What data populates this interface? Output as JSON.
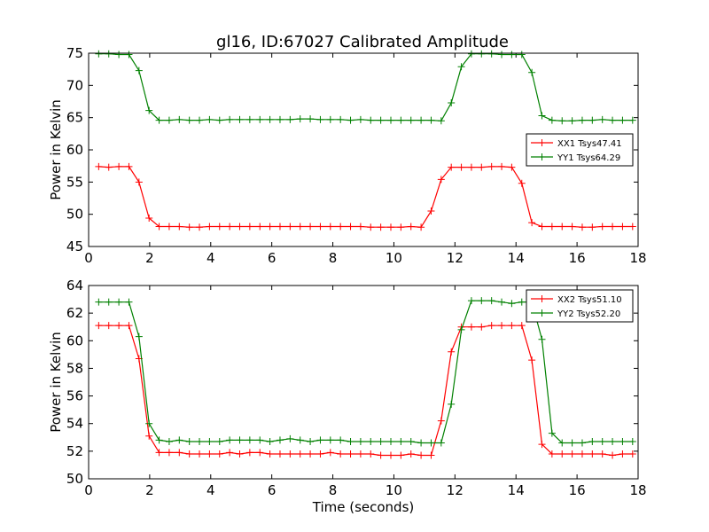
{
  "title": "gl16, ID:67027 Calibrated Amplitude",
  "chart_data": [
    {
      "type": "line",
      "xlabel": "",
      "ylabel": "Power in Kelvin",
      "xlim": [
        0,
        18
      ],
      "ylim": [
        45,
        75
      ],
      "xticks": [
        "0",
        "2",
        "4",
        "6",
        "8",
        "10",
        "12",
        "14",
        "16",
        "18"
      ],
      "yticks": [
        "45",
        "50",
        "55",
        "60",
        "65",
        "70",
        "75"
      ],
      "grid": false,
      "legend_position": "center-right",
      "x": [
        0.33,
        0.66,
        0.99,
        1.32,
        1.65,
        1.98,
        2.31,
        2.64,
        2.97,
        3.3,
        3.63,
        3.96,
        4.29,
        4.62,
        4.95,
        5.28,
        5.61,
        5.94,
        6.27,
        6.6,
        6.93,
        7.26,
        7.59,
        7.92,
        8.25,
        8.58,
        8.91,
        9.24,
        9.57,
        9.9,
        10.23,
        10.56,
        10.89,
        11.22,
        11.55,
        11.88,
        12.21,
        12.54,
        12.87,
        13.2,
        13.53,
        13.86,
        14.19,
        14.52,
        14.85,
        15.18,
        15.51,
        15.84,
        16.17,
        16.5,
        16.83,
        17.16,
        17.49,
        17.82
      ],
      "series": [
        {
          "name": "XX1 Tsys47.41",
          "color": "#ff0000",
          "values": [
            57.4,
            57.3,
            57.4,
            57.4,
            55.0,
            49.4,
            48.1,
            48.1,
            48.1,
            48.0,
            48.0,
            48.1,
            48.1,
            48.1,
            48.1,
            48.1,
            48.1,
            48.1,
            48.1,
            48.1,
            48.1,
            48.1,
            48.1,
            48.1,
            48.1,
            48.1,
            48.1,
            48.0,
            48.0,
            48.0,
            48.0,
            48.1,
            48.0,
            50.5,
            55.4,
            57.3,
            57.3,
            57.3,
            57.3,
            57.4,
            57.4,
            57.3,
            54.8,
            48.7,
            48.1,
            48.1,
            48.1,
            48.1,
            48.0,
            48.0,
            48.1,
            48.1,
            48.1,
            48.1
          ]
        },
        {
          "name": "YY1 Tsys64.29",
          "color": "#008000",
          "values": [
            74.9,
            74.9,
            74.8,
            74.8,
            72.3,
            66.1,
            64.6,
            64.6,
            64.7,
            64.6,
            64.6,
            64.7,
            64.6,
            64.7,
            64.7,
            64.7,
            64.7,
            64.7,
            64.7,
            64.7,
            64.8,
            64.8,
            64.7,
            64.7,
            64.7,
            64.6,
            64.7,
            64.6,
            64.6,
            64.6,
            64.6,
            64.6,
            64.6,
            64.6,
            64.5,
            67.3,
            72.9,
            74.9,
            74.9,
            74.9,
            74.8,
            74.8,
            74.8,
            72.0,
            65.3,
            64.6,
            64.5,
            64.5,
            64.6,
            64.6,
            64.7,
            64.6,
            64.6,
            64.6
          ]
        }
      ]
    },
    {
      "type": "line",
      "xlabel": "Time (seconds)",
      "ylabel": "Power in Kelvin",
      "xlim": [
        0,
        18
      ],
      "ylim": [
        50,
        64
      ],
      "xticks": [
        "0",
        "2",
        "4",
        "6",
        "8",
        "10",
        "12",
        "14",
        "16",
        "18"
      ],
      "yticks": [
        "50",
        "52",
        "54",
        "56",
        "58",
        "60",
        "62",
        "64"
      ],
      "grid": false,
      "legend_position": "top-right",
      "x": [
        0.33,
        0.66,
        0.99,
        1.32,
        1.65,
        1.98,
        2.31,
        2.64,
        2.97,
        3.3,
        3.63,
        3.96,
        4.29,
        4.62,
        4.95,
        5.28,
        5.61,
        5.94,
        6.27,
        6.6,
        6.93,
        7.26,
        7.59,
        7.92,
        8.25,
        8.58,
        8.91,
        9.24,
        9.57,
        9.9,
        10.23,
        10.56,
        10.89,
        11.22,
        11.55,
        11.88,
        12.21,
        12.54,
        12.87,
        13.2,
        13.53,
        13.86,
        14.19,
        14.52,
        14.85,
        15.18,
        15.51,
        15.84,
        16.17,
        16.5,
        16.83,
        17.16,
        17.49,
        17.82
      ],
      "series": [
        {
          "name": "XX2 Tsys51.10",
          "color": "#ff0000",
          "values": [
            61.1,
            61.1,
            61.1,
            61.1,
            58.7,
            53.1,
            51.9,
            51.9,
            51.9,
            51.8,
            51.8,
            51.8,
            51.8,
            51.9,
            51.8,
            51.9,
            51.9,
            51.8,
            51.8,
            51.8,
            51.8,
            51.8,
            51.8,
            51.9,
            51.8,
            51.8,
            51.8,
            51.8,
            51.7,
            51.7,
            51.7,
            51.8,
            51.7,
            51.7,
            54.2,
            59.2,
            61.0,
            61.0,
            61.0,
            61.1,
            61.1,
            61.1,
            61.1,
            58.6,
            52.5,
            51.8,
            51.8,
            51.8,
            51.8,
            51.8,
            51.8,
            51.7,
            51.8,
            51.8
          ]
        },
        {
          "name": "YY2 Tsys52.20",
          "color": "#008000",
          "values": [
            62.8,
            62.8,
            62.8,
            62.8,
            60.3,
            54.0,
            52.8,
            52.7,
            52.8,
            52.7,
            52.7,
            52.7,
            52.7,
            52.8,
            52.8,
            52.8,
            52.8,
            52.7,
            52.8,
            52.9,
            52.8,
            52.7,
            52.8,
            52.8,
            52.8,
            52.7,
            52.7,
            52.7,
            52.7,
            52.7,
            52.7,
            52.7,
            52.6,
            52.6,
            52.6,
            55.4,
            60.8,
            62.9,
            62.9,
            62.9,
            62.8,
            62.7,
            62.8,
            62.8,
            60.1,
            53.3,
            52.6,
            52.6,
            52.6,
            52.7,
            52.7,
            52.7,
            52.7,
            52.7
          ]
        }
      ]
    }
  ]
}
